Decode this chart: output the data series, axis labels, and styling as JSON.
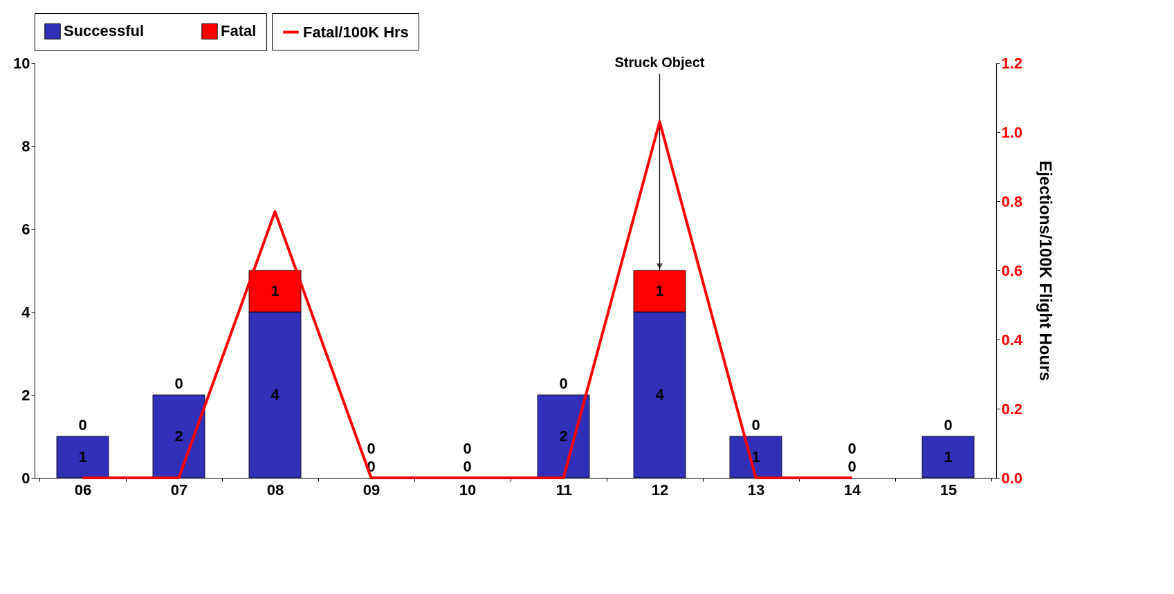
{
  "chart_data": {
    "type": "bar",
    "categories": [
      "06",
      "07",
      "08",
      "09",
      "10",
      "11",
      "12",
      "13",
      "14",
      "15"
    ],
    "stacked": true,
    "series": [
      {
        "name": "Successful",
        "color": "#3030b8",
        "values": [
          1,
          2,
          4,
          0,
          0,
          2,
          4,
          1,
          0,
          1
        ],
        "value_labels": [
          "1",
          "2",
          "4",
          "0",
          "0",
          "2",
          "4",
          "1",
          "0",
          "1"
        ]
      },
      {
        "name": "Fatal",
        "color": "#ff0000",
        "values": [
          0,
          0,
          1,
          0,
          0,
          0,
          1,
          0,
          0,
          0
        ],
        "value_labels": [
          "0",
          "0",
          "1",
          "0",
          "0",
          "0",
          "1",
          "0",
          "0",
          "0"
        ]
      },
      {
        "name": "Fatal/100K Hrs",
        "type": "line",
        "axis": "y2",
        "color": "#ff0000",
        "values": [
          0,
          0,
          0.77,
          0,
          0,
          0,
          1.03,
          0,
          0,
          null
        ]
      }
    ],
    "ylim": [
      0,
      10
    ],
    "yticks": [
      0,
      2,
      4,
      6,
      8,
      10
    ],
    "y2lim": [
      0,
      1.2
    ],
    "y2ticks": [
      {
        "value": 0,
        "label": "0.0"
      },
      0.2,
      0.4,
      0.6,
      0.8,
      {
        "value": 1,
        "label": "1.0"
      },
      {
        "value": 1.2,
        "label": "1.2"
      }
    ],
    "y2label": "Ejections/100K Flight Hours",
    "annotations": [
      {
        "text": "Struck Object",
        "x": "12",
        "y": 5
      }
    ],
    "legend": "top",
    "grid": false
  }
}
